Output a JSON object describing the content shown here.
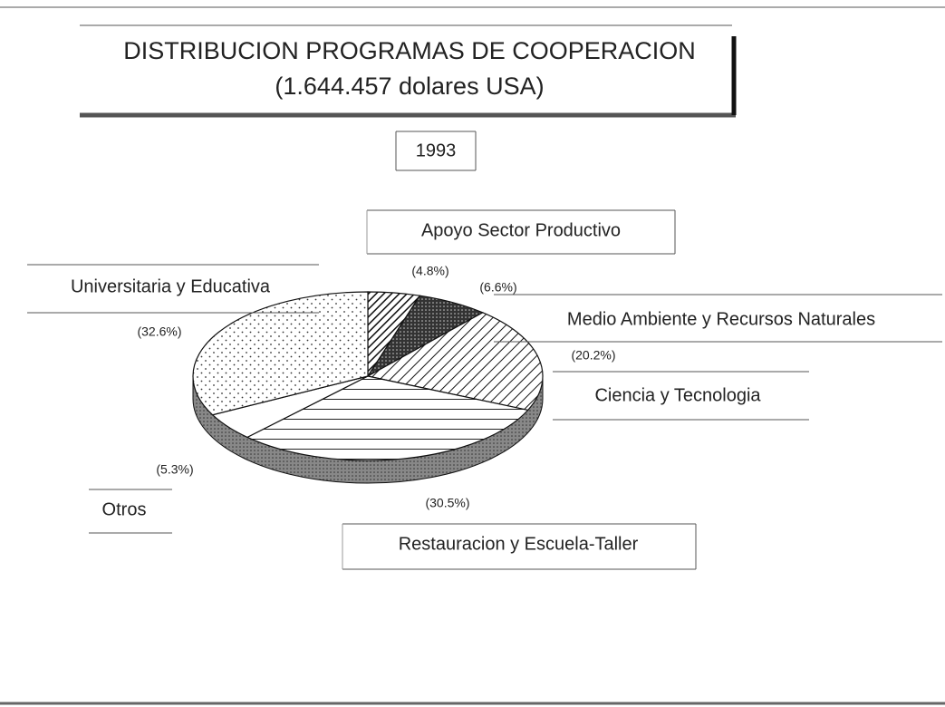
{
  "chart_data": {
    "type": "pie",
    "title": "DISTRIBUCION PROGRAMAS DE COOPERACION",
    "subtitle": "(1.644.457 dolares USA)",
    "year": "1993",
    "categories": [
      "Apoyo Sector Productivo",
      "Medio Ambiente y Recursos Naturales",
      "Ciencia y Tecnologia",
      "Restauracion y Escuela-Taller",
      "Otros",
      "Universitaria y Educativa"
    ],
    "values": [
      4.8,
      6.6,
      20.2,
      30.5,
      5.3,
      32.6
    ],
    "value_labels": [
      "(4.8%)",
      "(6.6%)",
      "(20.2%)",
      "(30.5%)",
      "(5.3%)",
      "(32.6%)"
    ]
  }
}
